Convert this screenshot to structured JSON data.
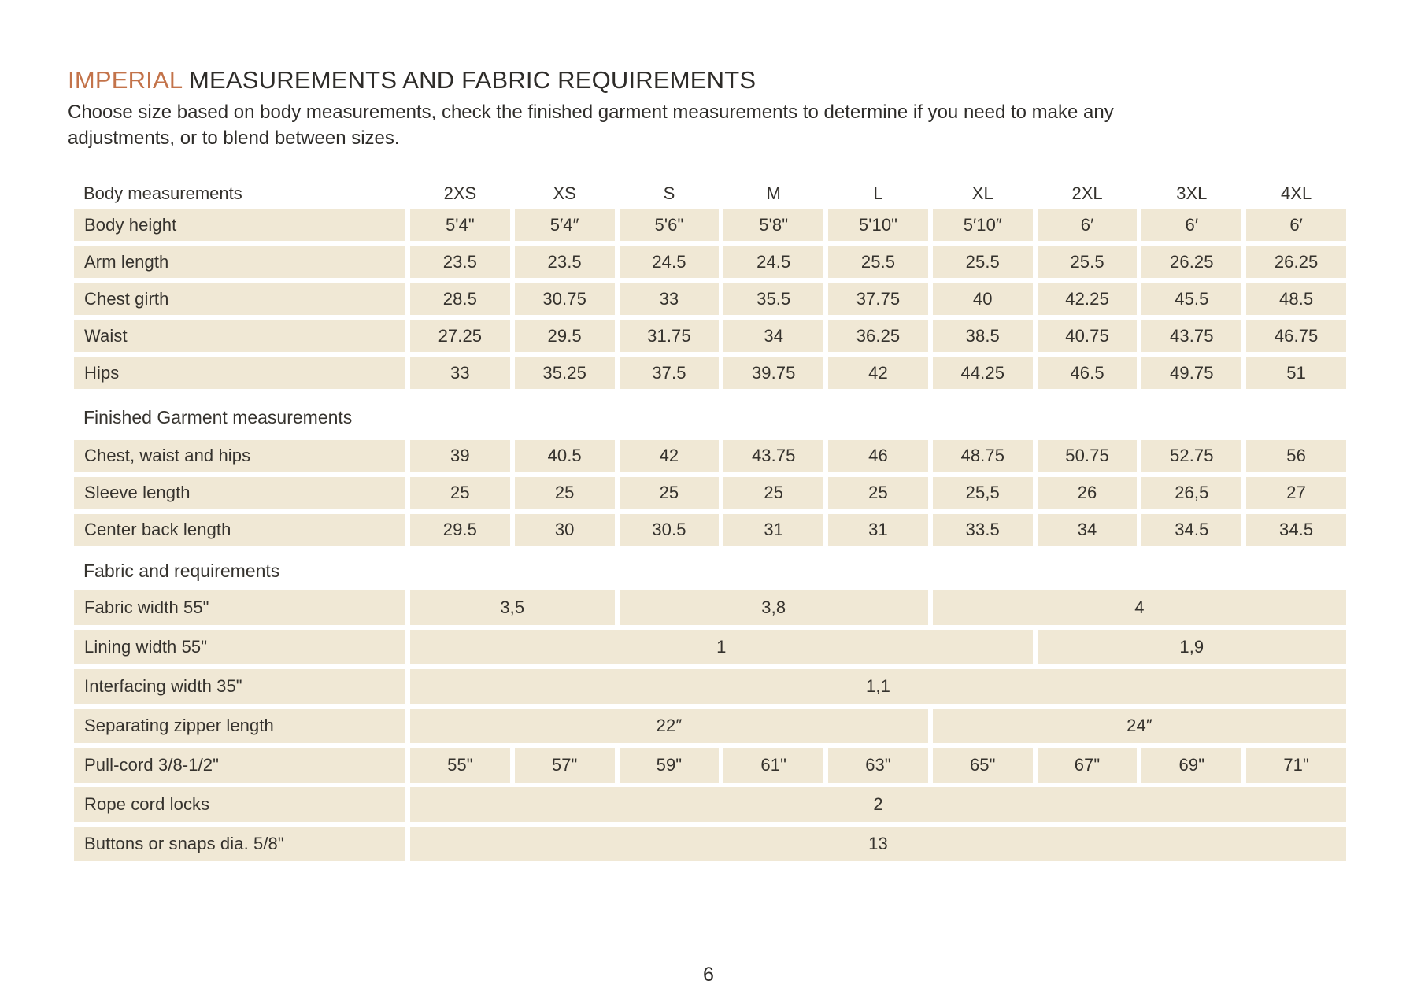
{
  "colors": {
    "accent_orange": "#c3734a",
    "cell_beige": "#f0e8d5",
    "text_dark": "#2e2c29"
  },
  "title": {
    "highlight": "IMPERIAL",
    "rest": " MEASUREMENTS AND FABRIC REQUIREMENTS"
  },
  "subtitle": "Choose size based on body measurements, check the finished garment measurements to determine if you need to make any adjustments, or to blend between sizes.",
  "page": {
    "number": "6"
  },
  "table": {
    "header": {
      "label": "Body measurements",
      "sizes": [
        "2XS",
        "XS",
        "S",
        "M",
        "L",
        "XL",
        "2XL",
        "3XL",
        "4XL"
      ]
    },
    "sections": [
      {
        "title": null,
        "rows": [
          {
            "label": "Body height",
            "cells": [
              {
                "span": 1,
                "value": "5'4\""
              },
              {
                "span": 1,
                "value": "5′4″"
              },
              {
                "span": 1,
                "value": "5'6\""
              },
              {
                "span": 1,
                "value": "5'8\""
              },
              {
                "span": 1,
                "value": "5'10\""
              },
              {
                "span": 1,
                "value": "5′10″"
              },
              {
                "span": 1,
                "value": "6′"
              },
              {
                "span": 1,
                "value": "6′"
              },
              {
                "span": 1,
                "value": "6′"
              }
            ]
          },
          {
            "label": "Arm length",
            "cells": [
              {
                "span": 1,
                "value": "23.5"
              },
              {
                "span": 1,
                "value": "23.5"
              },
              {
                "span": 1,
                "value": "24.5"
              },
              {
                "span": 1,
                "value": "24.5"
              },
              {
                "span": 1,
                "value": "25.5"
              },
              {
                "span": 1,
                "value": "25.5"
              },
              {
                "span": 1,
                "value": "25.5"
              },
              {
                "span": 1,
                "value": "26.25"
              },
              {
                "span": 1,
                "value": "26.25"
              }
            ]
          },
          {
            "label": "Chest girth",
            "cells": [
              {
                "span": 1,
                "value": "28.5"
              },
              {
                "span": 1,
                "value": "30.75"
              },
              {
                "span": 1,
                "value": "33"
              },
              {
                "span": 1,
                "value": "35.5"
              },
              {
                "span": 1,
                "value": "37.75"
              },
              {
                "span": 1,
                "value": "40"
              },
              {
                "span": 1,
                "value": "42.25"
              },
              {
                "span": 1,
                "value": "45.5"
              },
              {
                "span": 1,
                "value": "48.5"
              }
            ]
          },
          {
            "label": "Waist",
            "cells": [
              {
                "span": 1,
                "value": "27.25"
              },
              {
                "span": 1,
                "value": "29.5"
              },
              {
                "span": 1,
                "value": "31.75"
              },
              {
                "span": 1,
                "value": "34"
              },
              {
                "span": 1,
                "value": "36.25"
              },
              {
                "span": 1,
                "value": "38.5"
              },
              {
                "span": 1,
                "value": "40.75"
              },
              {
                "span": 1,
                "value": "43.75"
              },
              {
                "span": 1,
                "value": "46.75"
              }
            ]
          },
          {
            "label": "Hips",
            "cells": [
              {
                "span": 1,
                "value": "33"
              },
              {
                "span": 1,
                "value": "35.25"
              },
              {
                "span": 1,
                "value": "37.5"
              },
              {
                "span": 1,
                "value": "39.75"
              },
              {
                "span": 1,
                "value": "42"
              },
              {
                "span": 1,
                "value": "44.25"
              },
              {
                "span": 1,
                "value": "46.5"
              },
              {
                "span": 1,
                "value": "49.75"
              },
              {
                "span": 1,
                "value": "51"
              }
            ]
          }
        ]
      },
      {
        "title": "Finished Garment measurements",
        "rows": [
          {
            "label": "Chest, waist and hips",
            "cells": [
              {
                "span": 1,
                "value": "39"
              },
              {
                "span": 1,
                "value": "40.5"
              },
              {
                "span": 1,
                "value": "42"
              },
              {
                "span": 1,
                "value": "43.75"
              },
              {
                "span": 1,
                "value": "46"
              },
              {
                "span": 1,
                "value": "48.75"
              },
              {
                "span": 1,
                "value": "50.75"
              },
              {
                "span": 1,
                "value": "52.75"
              },
              {
                "span": 1,
                "value": "56"
              }
            ]
          },
          {
            "label": "Sleeve length",
            "cells": [
              {
                "span": 1,
                "value": "25"
              },
              {
                "span": 1,
                "value": "25"
              },
              {
                "span": 1,
                "value": "25"
              },
              {
                "span": 1,
                "value": "25"
              },
              {
                "span": 1,
                "value": "25"
              },
              {
                "span": 1,
                "value": "25,5"
              },
              {
                "span": 1,
                "value": "26"
              },
              {
                "span": 1,
                "value": "26,5"
              },
              {
                "span": 1,
                "value": "27"
              }
            ]
          },
          {
            "label": "Center back length",
            "cells": [
              {
                "span": 1,
                "value": "29.5"
              },
              {
                "span": 1,
                "value": "30"
              },
              {
                "span": 1,
                "value": "30.5"
              },
              {
                "span": 1,
                "value": "31"
              },
              {
                "span": 1,
                "value": "31"
              },
              {
                "span": 1,
                "value": "33.5"
              },
              {
                "span": 1,
                "value": "34"
              },
              {
                "span": 1,
                "value": "34.5"
              },
              {
                "span": 1,
                "value": "34.5"
              }
            ]
          }
        ]
      },
      {
        "title": "Fabric and requirements",
        "rows": [
          {
            "label": "Fabric width 55\"",
            "cells": [
              {
                "span": 2,
                "value": "3,5"
              },
              {
                "span": 3,
                "value": "3,8"
              },
              {
                "span": 4,
                "value": "4"
              }
            ]
          },
          {
            "label": "Lining width 55\"",
            "cells": [
              {
                "span": 6,
                "value": "1"
              },
              {
                "span": 3,
                "value": "1,9"
              }
            ]
          },
          {
            "label": "Interfacing width 35\"",
            "cells": [
              {
                "span": 9,
                "value": "1,1"
              }
            ]
          },
          {
            "label": "Separating zipper length",
            "cells": [
              {
                "span": 5,
                "value": "22″"
              },
              {
                "span": 4,
                "value": "24″"
              }
            ]
          },
          {
            "label": "Pull-cord 3/8-1/2\"",
            "cells": [
              {
                "span": 1,
                "value": "55\""
              },
              {
                "span": 1,
                "value": "57\""
              },
              {
                "span": 1,
                "value": "59\""
              },
              {
                "span": 1,
                "value": "61\""
              },
              {
                "span": 1,
                "value": "63\""
              },
              {
                "span": 1,
                "value": "65\""
              },
              {
                "span": 1,
                "value": "67\""
              },
              {
                "span": 1,
                "value": "69\""
              },
              {
                "span": 1,
                "value": "71\""
              }
            ]
          },
          {
            "label": "Rope cord locks",
            "cells": [
              {
                "span": 9,
                "value": "2"
              }
            ]
          },
          {
            "label": "Buttons or snaps dia. 5/8\"",
            "cells": [
              {
                "span": 9,
                "value": "13"
              }
            ]
          }
        ]
      }
    ]
  }
}
